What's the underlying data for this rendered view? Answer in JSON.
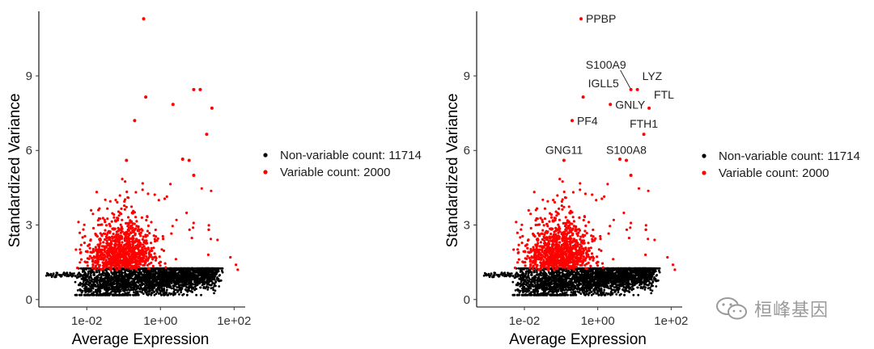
{
  "chart_data": [
    {
      "type": "scatter",
      "xscale": "log10",
      "xlabel": "Average Expression",
      "ylabel": "Standardized Variance",
      "xlim": [
        0.0005,
        200
      ],
      "ylim": [
        -0.3,
        11.6
      ],
      "xticks": [
        0.01,
        1,
        100
      ],
      "xtick_labels": [
        "1e-02",
        "1e+00",
        "1e+02"
      ],
      "yticks": [
        0,
        3,
        6,
        9
      ],
      "ytick_labels": [
        "0",
        "3",
        "6",
        "9"
      ],
      "legend": [
        {
          "label": "Non-variable count: 11714",
          "color": "#000000"
        },
        {
          "label": "Variable count: 2000",
          "color": "#ff0000"
        }
      ],
      "legend_position": "right",
      "highlight_points": [
        {
          "x": 0.35,
          "y": 11.3
        },
        {
          "x": 0.4,
          "y": 8.15
        },
        {
          "x": 8,
          "y": 8.45
        },
        {
          "x": 12,
          "y": 8.45
        },
        {
          "x": 2.2,
          "y": 7.85
        },
        {
          "x": 25,
          "y": 7.7
        },
        {
          "x": 0.2,
          "y": 7.2
        },
        {
          "x": 18,
          "y": 6.65
        },
        {
          "x": 0.12,
          "y": 5.6
        },
        {
          "x": 6,
          "y": 5.6
        },
        {
          "x": 4,
          "y": 5.65
        },
        {
          "x": 8,
          "y": 5.0
        }
      ],
      "labels": []
    },
    {
      "type": "scatter",
      "xscale": "log10",
      "xlabel": "Average Expression",
      "ylabel": "Standardized Variance",
      "xlim": [
        0.0005,
        200
      ],
      "ylim": [
        -0.3,
        11.6
      ],
      "xticks": [
        0.01,
        1,
        100
      ],
      "xtick_labels": [
        "1e-02",
        "1e+00",
        "1e+02"
      ],
      "yticks": [
        0,
        3,
        6,
        9
      ],
      "ytick_labels": [
        "0",
        "3",
        "6",
        "9"
      ],
      "legend": [
        {
          "label": "Non-variable count: 11714",
          "color": "#000000"
        },
        {
          "label": "Variable count: 2000",
          "color": "#ff0000"
        }
      ],
      "legend_position": "right",
      "highlight_points": [
        {
          "x": 0.35,
          "y": 11.3
        },
        {
          "x": 0.4,
          "y": 8.15
        },
        {
          "x": 8,
          "y": 8.45
        },
        {
          "x": 12,
          "y": 8.45
        },
        {
          "x": 2.2,
          "y": 7.85
        },
        {
          "x": 25,
          "y": 7.7
        },
        {
          "x": 0.2,
          "y": 7.2
        },
        {
          "x": 18,
          "y": 6.65
        },
        {
          "x": 0.12,
          "y": 5.6
        },
        {
          "x": 6,
          "y": 5.6
        },
        {
          "x": 4,
          "y": 5.65
        },
        {
          "x": 8,
          "y": 5.0
        }
      ],
      "labels": [
        {
          "text": "PPBP",
          "x": 0.35,
          "y": 11.3,
          "anchor": "right"
        },
        {
          "text": "S100A9",
          "x": 8,
          "y": 8.45,
          "anchor": "above-left"
        },
        {
          "text": "LYZ",
          "x": 12,
          "y": 8.45,
          "anchor": "above-right"
        },
        {
          "text": "IGLL5",
          "x": 0.4,
          "y": 8.15,
          "anchor": "above-right"
        },
        {
          "text": "FTL",
          "x": 25,
          "y": 7.7,
          "anchor": "above-right"
        },
        {
          "text": "GNLY",
          "x": 2.2,
          "y": 7.85,
          "anchor": "right"
        },
        {
          "text": "PF4",
          "x": 0.2,
          "y": 7.2,
          "anchor": "right"
        },
        {
          "text": "FTH1",
          "x": 18,
          "y": 6.65,
          "anchor": "above"
        },
        {
          "text": "GNG11",
          "x": 0.12,
          "y": 5.6,
          "anchor": "above"
        },
        {
          "text": "S100A8",
          "x": 6,
          "y": 5.6,
          "anchor": "above"
        }
      ]
    }
  ],
  "watermark": {
    "text": "桓峰基因",
    "icon": "wechat-icon"
  }
}
